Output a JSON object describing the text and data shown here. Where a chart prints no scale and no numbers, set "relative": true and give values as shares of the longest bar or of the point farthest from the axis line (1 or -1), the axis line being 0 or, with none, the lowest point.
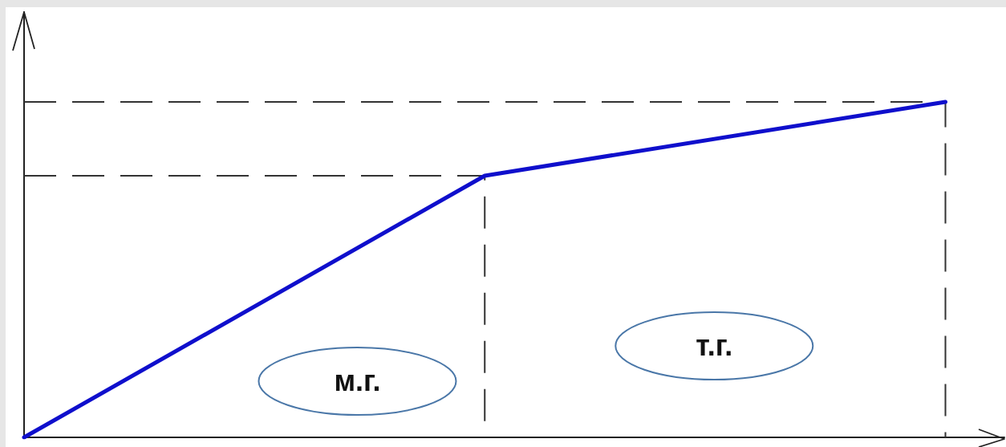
{
  "chart_data": {
    "type": "line",
    "categories": [
      null,
      null,
      null
    ],
    "values": [
      0,
      0.78,
      1
    ],
    "color": "#0f0fcc",
    "relative": true,
    "marker": "none",
    "line_style": "solid",
    "grid": false,
    "tick_labels": false,
    "ref_lines": [
      {
        "axis": "y",
        "value": 0.78,
        "color": "#333333",
        "line_style": "dashed"
      },
      {
        "axis": "y",
        "value": 1,
        "color": "#333333",
        "line_style": "dashed"
      }
    ],
    "annotations": [
      "м.г.",
      "т.г."
    ]
  }
}
